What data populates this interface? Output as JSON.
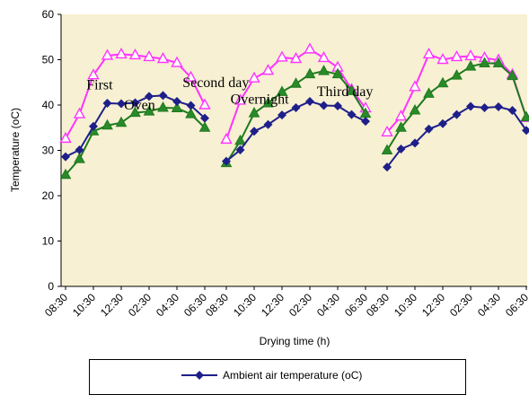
{
  "chart_data": {
    "type": "line",
    "xlabel": "Drying time (h)",
    "ylabel": "Temperature (oC)",
    "ylim": [
      0,
      60
    ],
    "yticks": [
      "0",
      "10",
      "20",
      "30",
      "40",
      "50",
      "60"
    ],
    "grid": false,
    "legend_position": "bottom",
    "colors": {
      "plot_bg": "#f7f0d2",
      "ambient": "#1f1f8a",
      "oven": "#1e7a1e",
      "pink": "#ff33ff",
      "green_fill": "#2a8a2a"
    },
    "days": [
      {
        "x": [
          "08:30",
          "09:30",
          "10:30",
          "11:30",
          "12:30",
          "01:30",
          "02:30",
          "03:30",
          "04:30",
          "05:30",
          "06:30"
        ],
        "tick_labels": [
          "08:30",
          "10:30",
          "12:30",
          "02:30",
          "04:30",
          "06:30"
        ],
        "ambient": [
          28.6,
          30.1,
          35.3,
          40.4,
          40.3,
          40.5,
          41.9,
          42.1,
          40.8,
          39.9,
          37.1
        ],
        "pink": [
          32.6,
          38.0,
          46.6,
          50.9,
          51.2,
          51.0,
          50.6,
          50.2,
          49.3,
          46.1,
          40.0
        ],
        "oven": [
          24.6,
          28.1,
          34.2,
          35.5,
          36.1,
          38.3,
          38.6,
          39.4,
          39.3,
          38.0,
          35.0
        ]
      },
      {
        "x": [
          "08:30",
          "09:30",
          "10:30",
          "11:30",
          "12:30",
          "01:30",
          "02:30",
          "03:30",
          "04:30",
          "05:30",
          "06:30"
        ],
        "tick_labels": [
          "08:30",
          "10:30",
          "12:30",
          "02:30",
          "04:30",
          "06:30"
        ],
        "ambient": [
          27.6,
          30.1,
          34.2,
          35.7,
          37.8,
          39.4,
          40.8,
          39.9,
          39.8,
          37.9,
          36.4
        ],
        "pink": [
          32.4,
          41.0,
          45.9,
          47.6,
          50.5,
          50.2,
          52.3,
          50.4,
          48.3,
          43.4,
          39.3
        ],
        "oven": [
          27.2,
          32.1,
          38.2,
          40.4,
          42.9,
          44.7,
          46.8,
          47.5,
          46.8,
          43.1,
          38.1
        ]
      },
      {
        "x": [
          "08:30",
          "09:30",
          "10:30",
          "11:30",
          "12:30",
          "01:30",
          "02:30",
          "03:30",
          "04:30",
          "05:30",
          "06:30"
        ],
        "tick_labels": [
          "08:30",
          "10:30",
          "12:30",
          "02:30",
          "04:30",
          "06:30"
        ],
        "ambient": [
          26.3,
          30.3,
          31.6,
          34.7,
          35.9,
          37.9,
          39.7,
          39.4,
          39.6,
          38.8,
          34.4
        ],
        "pink": [
          34.0,
          37.5,
          44.0,
          51.2,
          50.0,
          50.6,
          50.8,
          50.4,
          49.9,
          46.7,
          37.2
        ],
        "oven": [
          30.0,
          35.0,
          38.8,
          42.5,
          44.8,
          46.5,
          48.5,
          49.2,
          49.2,
          46.4,
          37.3
        ]
      }
    ],
    "annotations": [
      {
        "text": "First",
        "anchor_day": 0,
        "anchor_x": 1.5,
        "anchor_y": 43.5
      },
      {
        "text": "Oven",
        "anchor_day": 0,
        "anchor_x": 4.2,
        "anchor_y": 39.0
      },
      {
        "text": "Second day",
        "anchor_day": 0,
        "anchor_x": 8.4,
        "anchor_y": 44.0
      },
      {
        "text": "Overnight",
        "anchor_day": 1,
        "anchor_x": 0.3,
        "anchor_y": 40.3
      },
      {
        "text": "Third day",
        "anchor_day": 1,
        "anchor_x": 6.5,
        "anchor_y": 42.0
      }
    ],
    "legend": {
      "entries": [
        "Ambient air temperature (oC)"
      ]
    }
  }
}
